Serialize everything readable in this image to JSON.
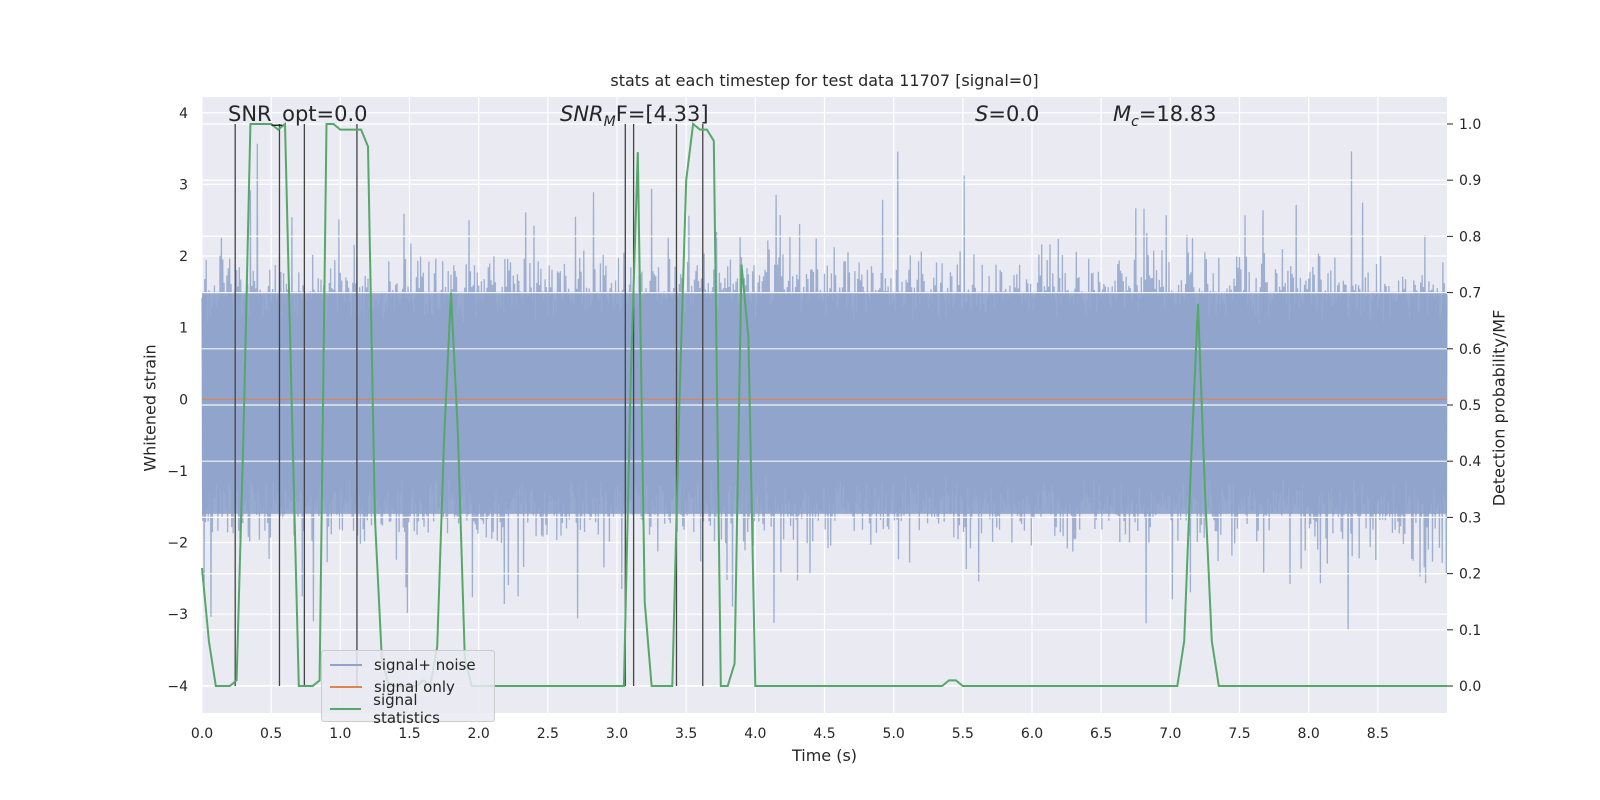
{
  "chart_data": {
    "type": "line",
    "title": "stats at each timestep for test data 11707 [signal=0]",
    "xlabel": "Time (s)",
    "ylabel_left": "Whitened strain",
    "ylabel_right": "Detection probability/MF",
    "xlim": [
      0.0,
      9.0
    ],
    "ylim_left": [
      -4.38,
      4.22
    ],
    "ylim_right": [
      -0.048,
      1.048
    ],
    "x_ticks": [
      "0.0",
      "0.5",
      "1.0",
      "1.5",
      "2.0",
      "2.5",
      "3.0",
      "3.5",
      "4.0",
      "4.5",
      "5.0",
      "5.5",
      "6.0",
      "6.5",
      "7.0",
      "7.5",
      "8.0",
      "8.5"
    ],
    "y_ticks_left": [
      "4",
      "3",
      "2",
      "1",
      "0",
      "−1",
      "−2",
      "−3",
      "−4"
    ],
    "y_ticks_right": [
      "1.0",
      "0.9",
      "0.8",
      "0.7",
      "0.6",
      "0.5",
      "0.4",
      "0.3",
      "0.2",
      "0.1",
      "0.0"
    ],
    "grid": true,
    "legend_position": "lower-left",
    "annotations": {
      "snr_opt": "SNR_opt=0.0",
      "snr_mf_label": "SNR",
      "snr_mf_sub": "M",
      "snr_mf_rest": "F=[4.33]",
      "s_label": "S",
      "s_value": "=0.0",
      "mc_label": "M",
      "mc_sub": "c",
      "mc_value": "=18.83"
    },
    "series": [
      {
        "name": "signal+ noise",
        "color": "#8fa3cb",
        "description_level": "whitened strain noise, roughly within ±2.5 with spikes to ±4",
        "envelope_core": [
          -1.6,
          1.5
        ]
      },
      {
        "name": "signal only",
        "color": "#dd8452",
        "values_constant": 0.0
      },
      {
        "name": "signal statistics",
        "color": "#55a868",
        "x": [
          0.0,
          0.05,
          0.1,
          0.15,
          0.2,
          0.25,
          0.3,
          0.35,
          0.4,
          0.45,
          0.5,
          0.55,
          0.6,
          0.65,
          0.7,
          0.75,
          0.8,
          0.85,
          0.9,
          0.95,
          1.0,
          1.05,
          1.1,
          1.15,
          1.2,
          1.25,
          1.3,
          1.35,
          1.4,
          1.45,
          1.5,
          1.55,
          1.6,
          1.65,
          1.7,
          1.75,
          1.8,
          1.85,
          1.9,
          1.95,
          2.0,
          2.05,
          2.1,
          2.2,
          2.5,
          2.7,
          2.8,
          2.9,
          3.0,
          3.05,
          3.1,
          3.15,
          3.2,
          3.25,
          3.3,
          3.35,
          3.4,
          3.45,
          3.5,
          3.55,
          3.6,
          3.65,
          3.7,
          3.75,
          3.8,
          3.85,
          3.9,
          3.95,
          4.0,
          4.05,
          4.1,
          4.5,
          5.0,
          5.3,
          5.35,
          5.4,
          5.45,
          5.5,
          5.55,
          5.6,
          5.65,
          5.7,
          5.75,
          5.8,
          6.0,
          6.5,
          7.0,
          7.05,
          7.1,
          7.15,
          7.2,
          7.25,
          7.3,
          7.35,
          7.4,
          7.5,
          8.0,
          8.5,
          8.8,
          8.85,
          8.9,
          8.95,
          9.0
        ],
        "y": [
          0.21,
          0.08,
          0.0,
          0.0,
          0.0,
          0.01,
          0.45,
          1.0,
          1.0,
          1.0,
          1.0,
          0.99,
          1.0,
          0.49,
          0.0,
          0.0,
          0.0,
          0.01,
          1.0,
          1.0,
          0.99,
          0.99,
          0.99,
          0.99,
          0.96,
          0.3,
          0.05,
          0.0,
          0.0,
          0.0,
          0.0,
          0.0,
          0.01,
          0.0,
          0.07,
          0.44,
          0.7,
          0.45,
          0.05,
          0.0,
          0.0,
          0.0,
          0.0,
          0.0,
          0.0,
          0.0,
          0.0,
          0.0,
          0.0,
          0.0,
          0.55,
          0.95,
          0.15,
          0.0,
          0.0,
          0.0,
          0.0,
          0.5,
          0.9,
          1.0,
          0.99,
          0.99,
          0.97,
          0.0,
          0.0,
          0.04,
          0.75,
          0.62,
          0.0,
          0.0,
          0.0,
          0.0,
          0.0,
          0.0,
          0.0,
          0.01,
          0.01,
          0.0,
          0.0,
          0.0,
          0.0,
          0.0,
          0.0,
          0.0,
          0.0,
          0.0,
          0.0,
          0.0,
          0.08,
          0.4,
          0.68,
          0.35,
          0.08,
          0.0,
          0.0,
          0.0,
          0.0,
          0.0,
          0.0,
          0.0,
          0.0,
          0.0,
          0.0
        ]
      }
    ],
    "vertical_markers_x": [
      0.24,
      0.56,
      0.74,
      1.12,
      3.06,
      3.12,
      3.43,
      3.62
    ]
  }
}
